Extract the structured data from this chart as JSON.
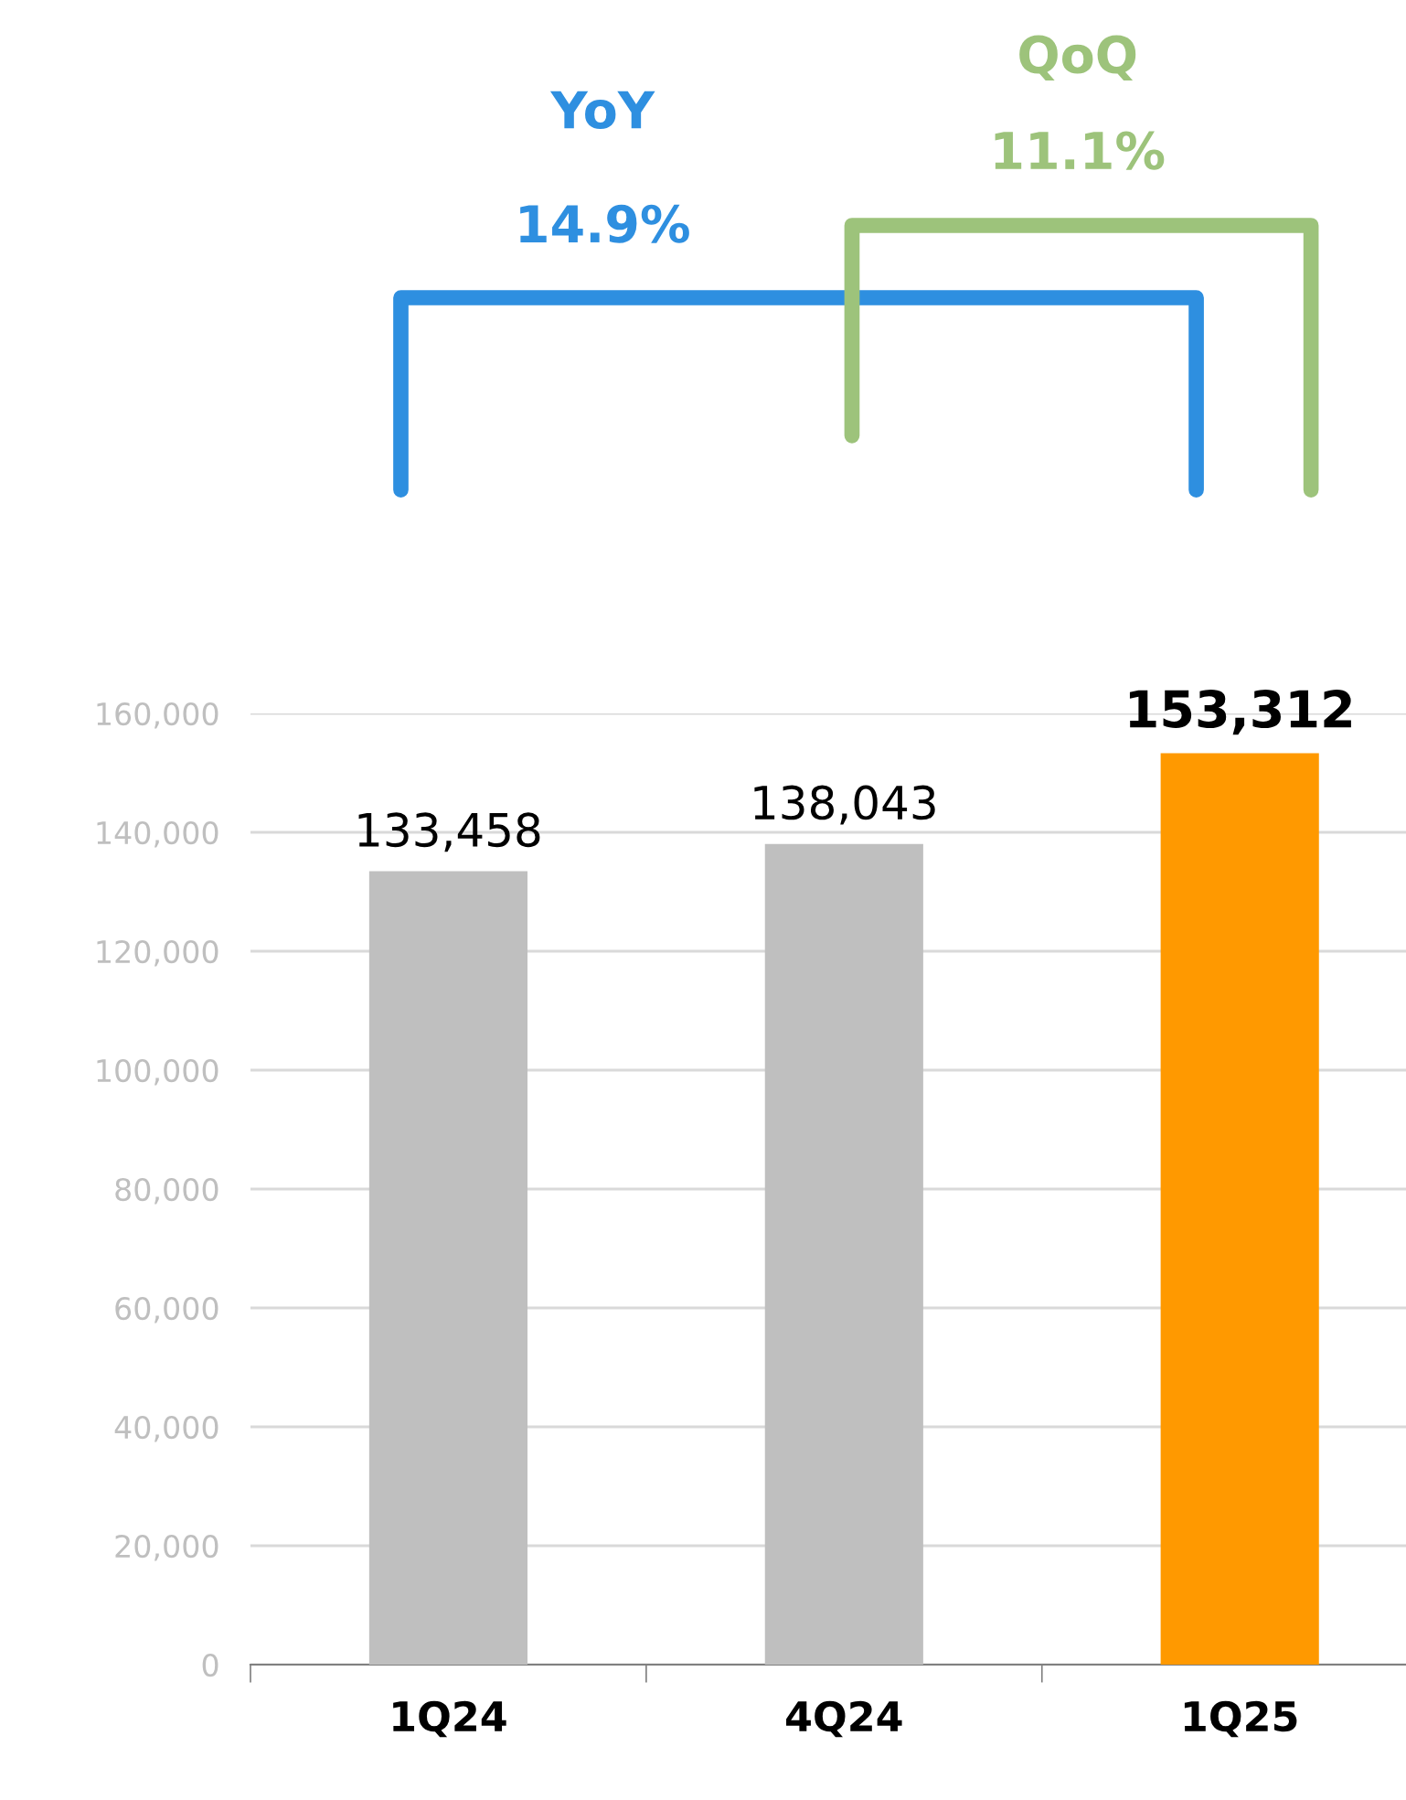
{
  "chart_data": {
    "type": "bar",
    "categories": [
      "1Q24",
      "4Q24",
      "1Q25"
    ],
    "values": [
      133458,
      138043,
      153312
    ],
    "colors": [
      "#bfbfbf",
      "#bfbfbf",
      "#ff9900"
    ],
    "value_labels": [
      "133,458",
      "138,043",
      "153,312"
    ],
    "ylim": [
      0,
      160000
    ],
    "yticks": [
      {
        "value": 0,
        "label": "0"
      },
      {
        "value": 20000,
        "label": "20,000"
      },
      {
        "value": 40000,
        "label": "40,000"
      },
      {
        "value": 60000,
        "label": "60,000"
      },
      {
        "value": 80000,
        "label": "80,000"
      },
      {
        "value": 100000,
        "label": "100,000"
      },
      {
        "value": 120000,
        "label": "120,000"
      },
      {
        "value": 140000,
        "label": "140,000"
      },
      {
        "value": 160000,
        "label": "160,000"
      }
    ],
    "grid": "y",
    "legend": false,
    "annotations": [
      "YoY",
      "14.9%",
      "QoQ",
      "11.1%"
    ]
  }
}
